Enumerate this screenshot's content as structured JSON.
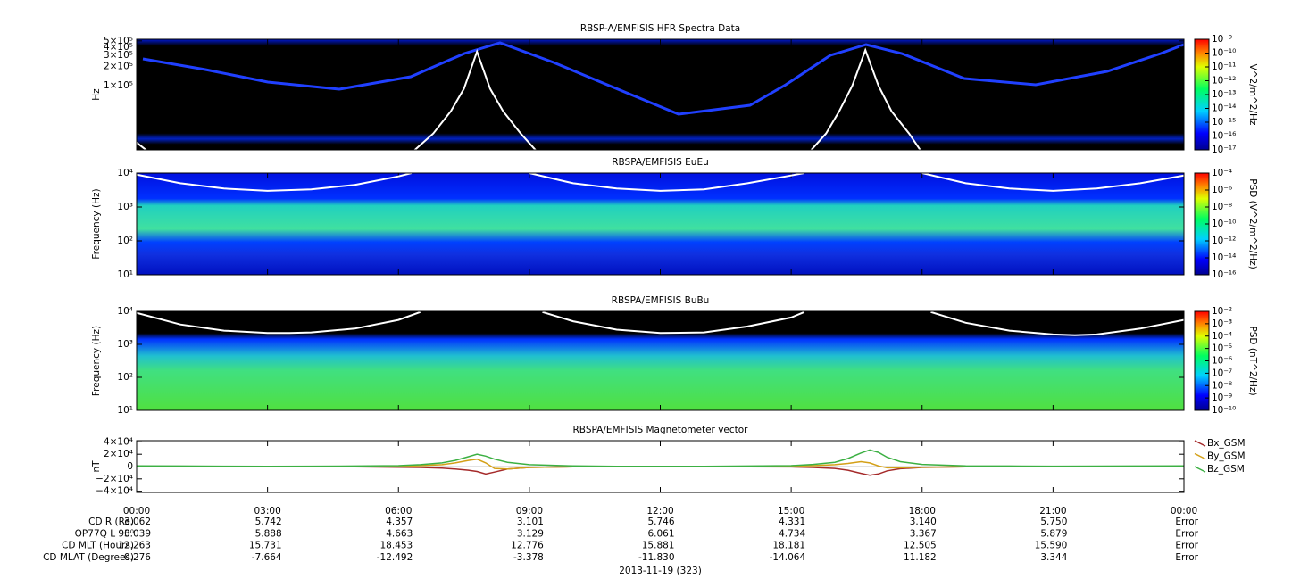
{
  "chart_data": [
    {
      "type": "spectrogram",
      "title": "RBSP-A/EMFISIS  HFR Spectra Data",
      "y_label": "Hz",
      "log_y": true,
      "ylim": [
        10000,
        530000
      ],
      "yticks": [
        {
          "value": 100000,
          "label": "1×10⁵"
        },
        {
          "value": 200000,
          "label": "2×10⁵"
        },
        {
          "value": 300000,
          "label": "3×10⁵"
        },
        {
          "value": 400000,
          "label": "4×10⁵"
        },
        {
          "value": 500000,
          "label": "5×10⁵"
        }
      ],
      "curve": {
        "color": "#ffffff",
        "x": [
          0,
          0.3,
          3,
          6.3,
          6.8,
          7.2,
          7.5,
          7.8,
          8.1,
          8.4,
          8.8,
          9.2,
          12,
          15.4,
          15.8,
          16.1,
          16.4,
          16.7,
          17.0,
          17.3,
          17.7,
          18.0
        ],
        "values": [
          13000,
          9000,
          null,
          9000,
          18000,
          40000,
          90000,
          340000,
          90000,
          40000,
          18000,
          9000,
          null,
          9000,
          18000,
          40000,
          100000,
          360000,
          100000,
          40000,
          18000,
          9000
        ]
      },
      "colorbar": {
        "label": "V^2/m^2/Hz",
        "clim": [
          1e-17,
          1e-09
        ],
        "ticks": [
          {
            "value": 1e-09,
            "label": "10⁻⁹"
          },
          {
            "value": 1e-10,
            "label": "10⁻¹⁰"
          },
          {
            "value": 1e-11,
            "label": "10⁻¹¹"
          },
          {
            "value": 1e-12,
            "label": "10⁻¹²"
          },
          {
            "value": 1e-13,
            "label": "10⁻¹³"
          },
          {
            "value": 1e-14,
            "label": "10⁻¹⁴"
          },
          {
            "value": 1e-15,
            "label": "10⁻¹⁵"
          },
          {
            "value": 1e-16,
            "label": "10⁻¹⁶"
          },
          {
            "value": 1e-17,
            "label": "10⁻¹⁷"
          }
        ]
      }
    },
    {
      "type": "spectrogram",
      "title": "RBSPA/EMFISIS  EuEu",
      "y_label": "Frequency (Hz)",
      "log_y": true,
      "ylim": [
        10,
        10000
      ],
      "yticks": [
        {
          "value": 10,
          "label": "10¹"
        },
        {
          "value": 100,
          "label": "10²"
        },
        {
          "value": 1000,
          "label": "10³"
        },
        {
          "value": 10000,
          "label": "10⁴"
        }
      ],
      "curve": {
        "color": "#ffffff",
        "x": [
          0,
          1,
          2,
          3,
          4,
          5,
          6,
          6.3,
          7.5,
          9.0,
          10,
          11,
          12,
          13,
          14,
          15,
          15.3,
          16.5,
          18.0,
          19,
          20,
          21,
          22,
          23,
          24
        ],
        "values": [
          9000,
          5000,
          3500,
          3000,
          3300,
          4500,
          8000,
          10000,
          null,
          10000,
          5000,
          3500,
          3000,
          3300,
          5000,
          8500,
          10000,
          null,
          10000,
          5000,
          3500,
          3000,
          3500,
          5000,
          8500
        ]
      },
      "colorbar": {
        "label": "PSD (V^2/m^2/Hz)",
        "clim": [
          1e-16,
          0.0001
        ],
        "ticks": [
          {
            "value": 0.0001,
            "label": "10⁻⁴"
          },
          {
            "value": 1e-06,
            "label": "10⁻⁶"
          },
          {
            "value": 1e-08,
            "label": "10⁻⁸"
          },
          {
            "value": 1e-10,
            "label": "10⁻¹⁰"
          },
          {
            "value": 1e-12,
            "label": "10⁻¹²"
          },
          {
            "value": 1e-14,
            "label": "10⁻¹⁴"
          },
          {
            "value": 1e-16,
            "label": "10⁻¹⁶"
          }
        ]
      }
    },
    {
      "type": "spectrogram",
      "title": "RBSPA/EMFISIS  BuBu",
      "y_label": "Frequency (Hz)",
      "log_y": true,
      "ylim": [
        10,
        10000
      ],
      "yticks": [
        {
          "value": 10,
          "label": "10¹"
        },
        {
          "value": 100,
          "label": "10²"
        },
        {
          "value": 1000,
          "label": "10³"
        },
        {
          "value": 10000,
          "label": "10⁴"
        }
      ],
      "curve": {
        "color": "#ffffff",
        "x": [
          0,
          1,
          2,
          3,
          3.5,
          4,
          5,
          6,
          6.5,
          7.5,
          9.3,
          10,
          11,
          12,
          13,
          14,
          15,
          15.3,
          16.5,
          18.2,
          19,
          20,
          21,
          21.5,
          22,
          23,
          24
        ],
        "values": [
          9000,
          4000,
          2600,
          2200,
          2200,
          2300,
          3000,
          5500,
          9500,
          null,
          9500,
          5000,
          2800,
          2200,
          2300,
          3500,
          6500,
          9500,
          null,
          9500,
          4500,
          2600,
          2000,
          1900,
          2000,
          3000,
          5500
        ]
      },
      "colorbar": {
        "label": "PSD (nT^2/Hz)",
        "clim": [
          1e-10,
          0.01
        ],
        "ticks": [
          {
            "value": 0.01,
            "label": "10⁻²"
          },
          {
            "value": 0.001,
            "label": "10⁻³"
          },
          {
            "value": 0.0001,
            "label": "10⁻⁴"
          },
          {
            "value": 1e-05,
            "label": "10⁻⁵"
          },
          {
            "value": 1e-06,
            "label": "10⁻⁶"
          },
          {
            "value": 1e-07,
            "label": "10⁻⁷"
          },
          {
            "value": 1e-08,
            "label": "10⁻⁸"
          },
          {
            "value": 1e-09,
            "label": "10⁻⁹"
          },
          {
            "value": 1e-10,
            "label": "10⁻¹⁰"
          }
        ]
      }
    },
    {
      "type": "line",
      "title": "RBSPA/EMFISIS  Magnetometer vector",
      "y_label": "nT",
      "log_y": false,
      "ylim": [
        -42000,
        42000
      ],
      "yticks": [
        {
          "value": 40000,
          "label": "4×10⁴"
        },
        {
          "value": 20000,
          "label": "2×10⁴"
        },
        0,
        {
          "value": -20000,
          "label": "−2×10⁴"
        },
        {
          "value": -40000,
          "label": "−4×10⁴"
        }
      ],
      "xlim": [
        0,
        24
      ],
      "xticks": [
        {
          "value": 0,
          "label": "00:00"
        },
        {
          "value": 3,
          "label": "03:00"
        },
        {
          "value": 6,
          "label": "06:00"
        },
        {
          "value": 9,
          "label": "09:00"
        },
        {
          "value": 12,
          "label": "12:00"
        },
        {
          "value": 15,
          "label": "15:00"
        },
        {
          "value": 18,
          "label": "18:00"
        },
        {
          "value": 21,
          "label": "21:00"
        },
        {
          "value": 24,
          "label": "00:00"
        }
      ],
      "x": [
        0,
        1,
        2,
        3,
        4,
        5,
        6,
        6.5,
        7,
        7.3,
        7.6,
        7.8,
        8.0,
        8.2,
        8.5,
        9,
        10,
        11,
        12,
        13,
        14,
        15,
        15.5,
        16,
        16.3,
        16.6,
        16.8,
        17.0,
        17.2,
        17.5,
        18,
        19,
        20,
        21,
        22,
        23,
        24
      ],
      "series": [
        {
          "name": "Bx_GSM",
          "color": "#a52a2a",
          "values": [
            -500,
            -400,
            -300,
            -200,
            -300,
            -500,
            -1000,
            -1500,
            -2500,
            -4000,
            -6000,
            -8000,
            -12000,
            -9000,
            -4000,
            -1500,
            -500,
            -200,
            0,
            -200,
            -300,
            -600,
            -1500,
            -3000,
            -6000,
            -11000,
            -14000,
            -12000,
            -7000,
            -3500,
            -1500,
            -500,
            -300,
            -200,
            -300,
            -400,
            -500
          ]
        },
        {
          "name": "By_GSM",
          "color": "#d4a017",
          "values": [
            -500,
            -400,
            -300,
            -200,
            -100,
            0,
            500,
            1500,
            3000,
            6000,
            10000,
            12000,
            6000,
            -3000,
            -4000,
            -1500,
            -500,
            -200,
            0,
            200,
            400,
            800,
            1500,
            3000,
            5000,
            8000,
            6000,
            1000,
            -2000,
            -2000,
            -1000,
            -300,
            -200,
            -100,
            -100,
            -300,
            -500
          ]
        },
        {
          "name": "Bz_GSM",
          "color": "#3cb043",
          "values": [
            1000,
            800,
            600,
            500,
            600,
            900,
            1500,
            3000,
            6000,
            10000,
            16000,
            20000,
            17000,
            12000,
            7000,
            3000,
            1000,
            500,
            300,
            500,
            900,
            1500,
            3500,
            7000,
            13000,
            22000,
            27000,
            23000,
            15000,
            8000,
            3500,
            1200,
            800,
            600,
            700,
            900,
            1000
          ]
        }
      ]
    }
  ],
  "ephemeris": {
    "rows": [
      {
        "label": "CD R (Re)",
        "values": [
          "3.062",
          "5.742",
          "4.357",
          "3.101",
          "5.746",
          "4.331",
          "3.140",
          "5.750",
          "Error"
        ]
      },
      {
        "label": "OP77Q L 90⁰",
        "values": [
          "3.039",
          "5.888",
          "4.663",
          "3.129",
          "6.061",
          "4.734",
          "3.367",
          "5.879",
          "Error"
        ]
      },
      {
        "label": "CD MLT (Hours)",
        "values": [
          "12.263",
          "15.731",
          "18.453",
          "12.776",
          "15.881",
          "18.181",
          "12.505",
          "15.590",
          "Error"
        ]
      },
      {
        "label": "CD MLAT (Degrees)",
        "values": [
          "-0.276",
          "-7.664",
          "-12.492",
          "-3.378",
          "-11.830",
          "-14.064",
          "11.182",
          "3.344",
          "Error"
        ]
      }
    ],
    "date": "2013-11-19 (323)"
  }
}
